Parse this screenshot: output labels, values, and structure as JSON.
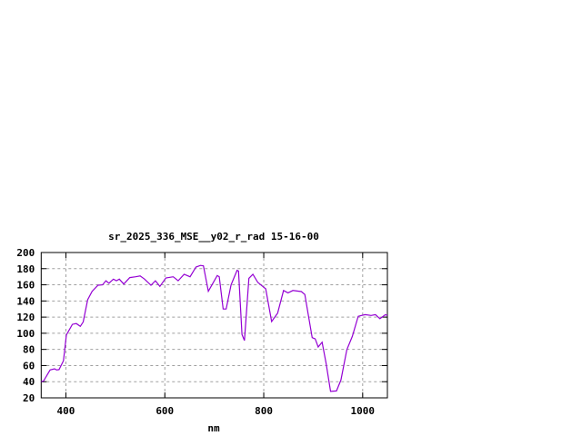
{
  "chart_data": {
    "type": "line",
    "title": "sr_2025_336_MSE__y02_r_rad 15-16-00",
    "xlabel": "nm",
    "ylabel": "",
    "xlim": [
      350,
      1050
    ],
    "ylim": [
      20,
      200
    ],
    "xticks": [
      400,
      600,
      800,
      1000
    ],
    "yticks": [
      20,
      40,
      60,
      80,
      100,
      120,
      140,
      160,
      180,
      200
    ],
    "grid": true,
    "line_color": "#9400d3",
    "series": [
      {
        "x": [
          350,
          355,
          368,
          377,
          381,
          386,
          395,
          401,
          413,
          421,
          429,
          435,
          444,
          453,
          465,
          474,
          481,
          487,
          496,
          502,
          508,
          517,
          529,
          541,
          550,
          559,
          572,
          581,
          590,
          602,
          617,
          627,
          639,
          651,
          663,
          672,
          678,
          688,
          706,
          710,
          718,
          724,
          734,
          746,
          749,
          756,
          761,
          770,
          778,
          788,
          798,
          804,
          816,
          828,
          840,
          849,
          859,
          876,
          883,
          898,
          904,
          910,
          918,
          926,
          935,
          947,
          956,
          968,
          979,
          991,
          1005,
          1017,
          1026,
          1035,
          1046,
          1050
        ],
        "y": [
          40,
          41,
          54.5,
          56,
          54.5,
          55,
          66,
          98,
          111,
          112,
          108.5,
          114,
          141.5,
          152,
          159.5,
          160,
          165,
          162,
          167,
          165,
          167,
          161,
          169,
          170,
          171,
          167,
          159.5,
          165,
          158,
          168.5,
          170,
          165,
          173,
          170,
          182,
          184,
          183.5,
          152,
          171.5,
          170,
          130,
          130,
          160,
          178,
          177,
          98.5,
          91,
          168,
          173,
          163,
          158,
          155,
          114.5,
          125,
          153,
          150,
          153,
          151.6,
          148,
          94.6,
          93,
          83,
          89,
          62.7,
          28,
          28.5,
          42,
          79.6,
          96,
          121,
          123,
          122,
          123,
          118,
          123,
          122
        ]
      }
    ]
  }
}
